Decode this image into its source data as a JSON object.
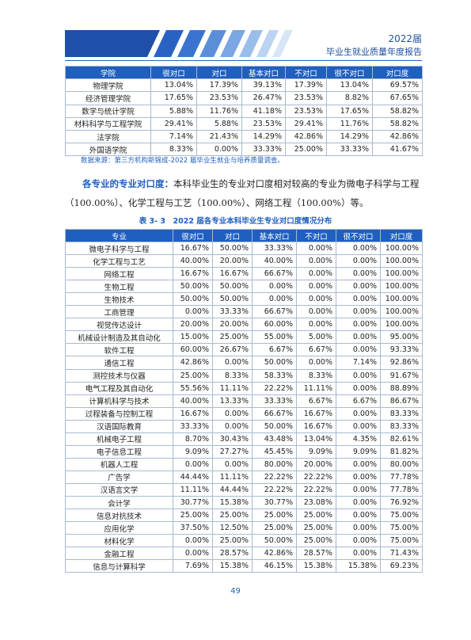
{
  "header": {
    "year": "2022届",
    "title": "毕业生就业质量年度报告"
  },
  "table1": {
    "headers": [
      "学院",
      "很对口",
      "对口",
      "基本对口",
      "不对口",
      "很不对口",
      "对口度"
    ],
    "rows": [
      [
        "物理学院",
        "13.04%",
        "17.39%",
        "39.13%",
        "17.39%",
        "13.04%",
        "69.57%"
      ],
      [
        "经济管理学院",
        "17.65%",
        "23.53%",
        "26.47%",
        "23.53%",
        "8.82%",
        "67.65%"
      ],
      [
        "数学与统计学院",
        "5.88%",
        "11.76%",
        "41.18%",
        "23.53%",
        "17.65%",
        "58.82%"
      ],
      [
        "材料科学与工程学院",
        "29.41%",
        "5.88%",
        "23.53%",
        "29.41%",
        "11.76%",
        "58.82%"
      ],
      [
        "法学院",
        "7.14%",
        "21.43%",
        "14.29%",
        "42.86%",
        "14.29%",
        "42.86%"
      ],
      [
        "外国语学院",
        "8.33%",
        "0.00%",
        "33.33%",
        "25.00%",
        "33.33%",
        "41.67%"
      ]
    ]
  },
  "source_note": "数据来源：第三方机构新锦成-2022 届毕业生就业与培养质量调查。",
  "paragraph": {
    "lead": "各专业的专业对口度：",
    "text": "本科毕业生的专业对口度相对较高的专业为微电子科学与工程（100.00%）、化学工程与工艺（100.00%）、网络工程（100.00%）等。"
  },
  "table2_caption": "表 3- 3　2022 届各专业本科毕业生专业对口度情况分布",
  "table2": {
    "headers": [
      "专业",
      "很对口",
      "对口",
      "基本对口",
      "不对口",
      "很不对口",
      "对口度"
    ],
    "rows": [
      [
        "微电子科学与工程",
        "16.67%",
        "50.00%",
        "33.33%",
        "0.00%",
        "0.00%",
        "100.00%"
      ],
      [
        "化学工程与工艺",
        "40.00%",
        "20.00%",
        "40.00%",
        "0.00%",
        "0.00%",
        "100.00%"
      ],
      [
        "网络工程",
        "16.67%",
        "16.67%",
        "66.67%",
        "0.00%",
        "0.00%",
        "100.00%"
      ],
      [
        "生物工程",
        "50.00%",
        "50.00%",
        "0.00%",
        "0.00%",
        "0.00%",
        "100.00%"
      ],
      [
        "生物技术",
        "50.00%",
        "50.00%",
        "0.00%",
        "0.00%",
        "0.00%",
        "100.00%"
      ],
      [
        "工商管理",
        "0.00%",
        "33.33%",
        "66.67%",
        "0.00%",
        "0.00%",
        "100.00%"
      ],
      [
        "视觉传达设计",
        "20.00%",
        "20.00%",
        "60.00%",
        "0.00%",
        "0.00%",
        "100.00%"
      ],
      [
        "机械设计制造及其自动化",
        "15.00%",
        "25.00%",
        "55.00%",
        "5.00%",
        "0.00%",
        "95.00%"
      ],
      [
        "软件工程",
        "60.00%",
        "26.67%",
        "6.67%",
        "6.67%",
        "0.00%",
        "93.33%"
      ],
      [
        "通信工程",
        "42.86%",
        "0.00%",
        "50.00%",
        "0.00%",
        "7.14%",
        "92.86%"
      ],
      [
        "测控技术与仪器",
        "25.00%",
        "8.33%",
        "58.33%",
        "8.33%",
        "0.00%",
        "91.67%"
      ],
      [
        "电气工程及其自动化",
        "55.56%",
        "11.11%",
        "22.22%",
        "11.11%",
        "0.00%",
        "88.89%"
      ],
      [
        "计算机科学与技术",
        "40.00%",
        "13.33%",
        "33.33%",
        "6.67%",
        "6.67%",
        "86.67%"
      ],
      [
        "过程装备与控制工程",
        "16.67%",
        "0.00%",
        "66.67%",
        "16.67%",
        "0.00%",
        "83.33%"
      ],
      [
        "汉语国际教育",
        "33.33%",
        "0.00%",
        "50.00%",
        "16.67%",
        "0.00%",
        "83.33%"
      ],
      [
        "机械电子工程",
        "8.70%",
        "30.43%",
        "43.48%",
        "13.04%",
        "4.35%",
        "82.61%"
      ],
      [
        "电子信息工程",
        "9.09%",
        "27.27%",
        "45.45%",
        "9.09%",
        "9.09%",
        "81.82%"
      ],
      [
        "机器人工程",
        "0.00%",
        "0.00%",
        "80.00%",
        "20.00%",
        "0.00%",
        "80.00%"
      ],
      [
        "广告学",
        "44.44%",
        "11.11%",
        "22.22%",
        "22.22%",
        "0.00%",
        "77.78%"
      ],
      [
        "汉语言文学",
        "11.11%",
        "44.44%",
        "22.22%",
        "22.22%",
        "0.00%",
        "77.78%"
      ],
      [
        "会计学",
        "30.77%",
        "15.38%",
        "30.77%",
        "23.08%",
        "0.00%",
        "76.92%"
      ],
      [
        "信息对抗技术",
        "25.00%",
        "25.00%",
        "25.00%",
        "25.00%",
        "0.00%",
        "75.00%"
      ],
      [
        "应用化学",
        "37.50%",
        "12.50%",
        "25.00%",
        "25.00%",
        "0.00%",
        "75.00%"
      ],
      [
        "材料化学",
        "0.00%",
        "25.00%",
        "50.00%",
        "25.00%",
        "0.00%",
        "75.00%"
      ],
      [
        "金融工程",
        "0.00%",
        "28.57%",
        "42.86%",
        "28.57%",
        "0.00%",
        "71.43%"
      ],
      [
        "信息与计算科学",
        "7.69%",
        "15.38%",
        "46.15%",
        "15.38%",
        "15.38%",
        "69.23%"
      ]
    ]
  },
  "page_number": "49"
}
